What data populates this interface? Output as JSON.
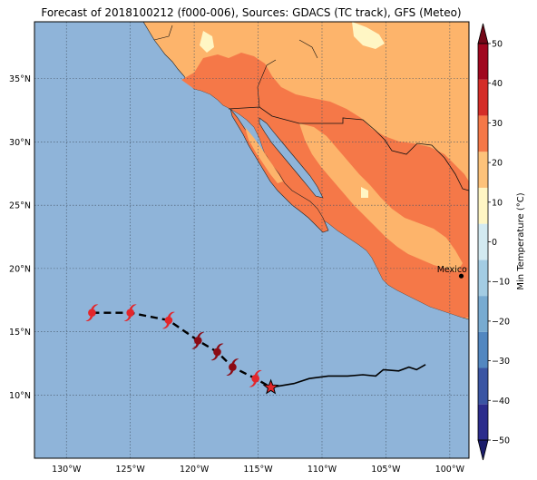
{
  "title": "Forecast of 2018100212 (f000-006), Sources: GDACS (TC track), GFS (Meteo)",
  "map": {
    "lon_range": [
      -132.5,
      -98.5
    ],
    "lat_range": [
      5.0,
      39.5
    ],
    "lon_ticks": [
      -130,
      -125,
      -120,
      -115,
      -110,
      -105,
      -100
    ],
    "lon_tick_labels": [
      "130°W",
      "125°W",
      "120°W",
      "115°W",
      "110°W",
      "105°W",
      "100°W"
    ],
    "lat_ticks": [
      10,
      15,
      20,
      25,
      30,
      35
    ],
    "lat_tick_labels": [
      "10°N",
      "15°N",
      "20°N",
      "25°N",
      "30°N",
      "35°N"
    ],
    "ocean_color": "#8fb4d9",
    "grid": true
  },
  "city": {
    "label": "Mexico City",
    "lon": -99.1,
    "lat": 19.4
  },
  "forecast_track": {
    "points": [
      [
        -128,
        16.5
      ],
      [
        -125,
        16.5
      ],
      [
        -122,
        15.9
      ],
      [
        -119.7,
        14.3
      ],
      [
        -118.2,
        13.4
      ],
      [
        -117,
        12.2
      ],
      [
        -115.2,
        11.3
      ],
      [
        -114,
        10.6
      ]
    ],
    "storm_symbols": [
      {
        "lon": -128.0,
        "lat": 16.5,
        "color": "#e3262b"
      },
      {
        "lon": -125.0,
        "lat": 16.5,
        "color": "#e3262b"
      },
      {
        "lon": -122.0,
        "lat": 15.9,
        "color": "#e3262b"
      },
      {
        "lon": -119.7,
        "lat": 14.3,
        "color": "#8b0a14"
      },
      {
        "lon": -118.2,
        "lat": 13.4,
        "color": "#8b0a14"
      },
      {
        "lon": -117.0,
        "lat": 12.2,
        "color": "#8b0a14"
      },
      {
        "lon": -115.2,
        "lat": 11.3,
        "color": "#e3262b"
      }
    ],
    "current_position": {
      "lon": -114.0,
      "lat": 10.6,
      "color": "#e3262b"
    }
  },
  "past_track": [
    [
      -114,
      10.6
    ],
    [
      -112.2,
      10.9
    ],
    [
      -111,
      11.3
    ],
    [
      -109.5,
      11.5
    ],
    [
      -108,
      11.5
    ],
    [
      -106.8,
      11.6
    ],
    [
      -105.8,
      11.5
    ],
    [
      -105.2,
      12.0
    ],
    [
      -104,
      11.9
    ],
    [
      -103.2,
      12.2
    ],
    [
      -102.6,
      12.0
    ],
    [
      -101.9,
      12.4
    ]
  ],
  "colorbar": {
    "label": "Min Temperature (°C)",
    "ticks": [
      -50,
      -40,
      -30,
      -20,
      -10,
      0,
      10,
      20,
      30,
      40,
      50
    ],
    "tick_labels": [
      "−50",
      "−40",
      "−30",
      "−20",
      "−10",
      "0",
      "10",
      "20",
      "30",
      "40",
      "50"
    ],
    "colors": [
      "#2b2c8c",
      "#3a55a3",
      "#5287c0",
      "#78abd1",
      "#a3cce3",
      "#d3eaf1",
      "#fff6c4",
      "#fdc27a",
      "#f57848",
      "#d42d28",
      "#a0071f"
    ],
    "extend_low": "#1b1d6b",
    "extend_high": "#730818"
  }
}
